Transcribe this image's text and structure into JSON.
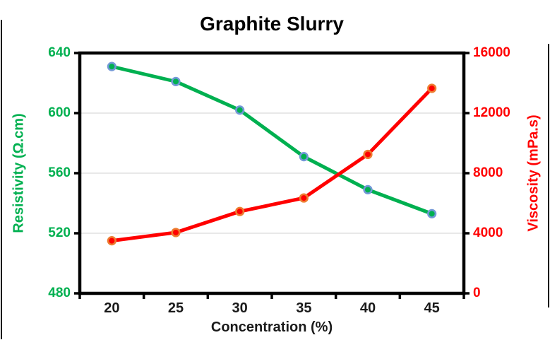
{
  "chart_data": {
    "type": "line",
    "title": "Graphite Slurry",
    "xlabel": "Concentration (%)",
    "ylabel_left": "Resistivity (Ω.cm)",
    "ylabel_right": "Viscosity (mPa.s)",
    "categories": [
      20,
      25,
      30,
      35,
      40,
      45
    ],
    "series": [
      {
        "name": "Resistivity",
        "axis": "left",
        "line_color": "#00B050",
        "marker_fill": "#00B050",
        "marker_border": "#7398D7",
        "values": [
          631,
          621,
          602,
          571,
          549,
          533
        ]
      },
      {
        "name": "Viscosity",
        "axis": "right",
        "line_color": "#FF0000",
        "marker_fill": "#FF0000",
        "marker_border": "#ED7D31",
        "values": [
          3500,
          4050,
          5450,
          6350,
          9250,
          13650
        ]
      }
    ],
    "left_axis": {
      "min": 480,
      "max": 640,
      "ticks": [
        640,
        600,
        560,
        520,
        480
      ],
      "color": "#00B050"
    },
    "right_axis": {
      "min": 0,
      "max": 16000,
      "ticks": [
        16000,
        12000,
        8000,
        4000,
        0
      ],
      "color": "#FF0000"
    },
    "x_tick_color": "#1a1a1a",
    "grid": "horizontal",
    "gridline_color": "#D9D9D9",
    "legend": "none"
  }
}
